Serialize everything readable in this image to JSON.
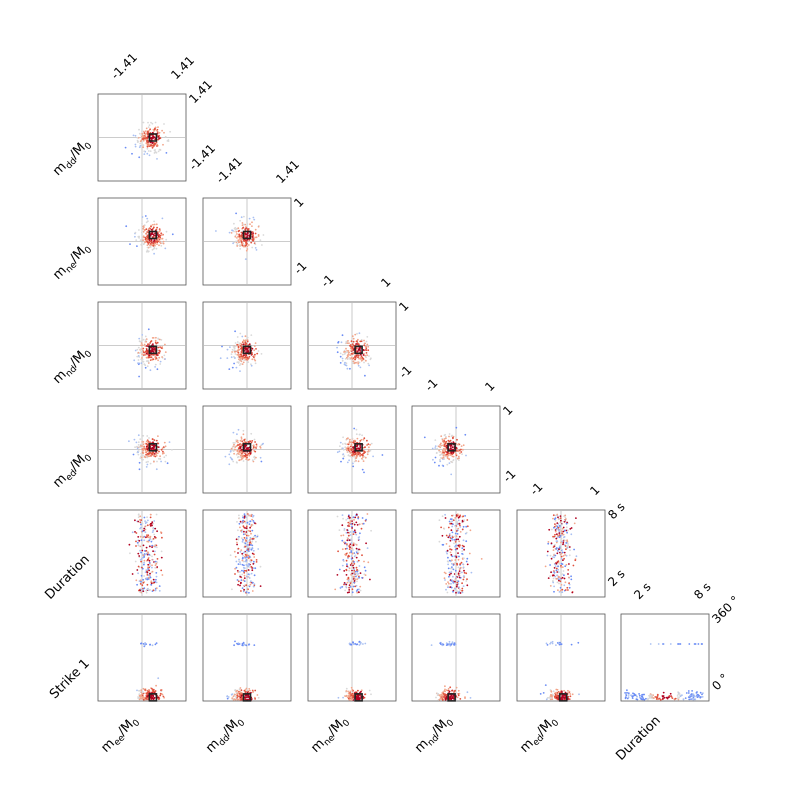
{
  "chart_data": {
    "type": "scatter",
    "title": "",
    "variables": [
      {
        "key": "m_ee",
        "label": "m",
        "sub": "ee",
        "unit": "/M",
        "unit_sub": "0",
        "range": [
          -1.41,
          1.41
        ]
      },
      {
        "key": "m_dd",
        "label": "m",
        "sub": "dd",
        "unit": "/M",
        "unit_sub": "0",
        "range": [
          -1.41,
          1.41
        ]
      },
      {
        "key": "m_ne",
        "label": "m",
        "sub": "ne",
        "unit": "/M",
        "unit_sub": "0",
        "range": [
          -1,
          1
        ]
      },
      {
        "key": "m_nd",
        "label": "m",
        "sub": "nd",
        "unit": "/M",
        "unit_sub": "0",
        "range": [
          -1,
          1
        ]
      },
      {
        "key": "m_ed",
        "label": "m",
        "sub": "ed",
        "unit": "/M",
        "unit_sub": "0",
        "range": [
          -1,
          1
        ]
      },
      {
        "key": "duration",
        "label": "Duration",
        "range": [
          2,
          8
        ],
        "unit": "s"
      },
      {
        "key": "strike1",
        "label": "Strike 1",
        "range": [
          0,
          360
        ],
        "unit": "°"
      }
    ],
    "row_labels": [
      "m_dd",
      "m_ne",
      "m_nd",
      "m_ed",
      "Duration",
      "Strike 1"
    ],
    "col_labels": [
      "m_ee",
      "m_dd",
      "m_ne",
      "m_nd",
      "m_ed",
      "Duration"
    ],
    "tick_labels": {
      "m_ee": [
        "-1.41",
        "1.41"
      ],
      "m_dd": [
        "-1.41",
        "1.41"
      ],
      "m_ne": [
        "-1",
        "1"
      ],
      "m_nd": [
        "-1",
        "1"
      ],
      "m_ed": [
        "-1",
        "1"
      ],
      "duration": [
        "2 s",
        "8 s"
      ],
      "strike1": [
        "0 °",
        "360 °"
      ]
    },
    "best_solution": {
      "m_ee": 0.35,
      "m_dd": 0.0,
      "m_ne": 0.15,
      "m_nd": -0.1,
      "m_ed": 0.05,
      "duration": 5.0,
      "strike1": 15
    },
    "colormap": [
      "#6a8cf5",
      "#a9c0f2",
      "#d9d9d9",
      "#f2a58a",
      "#e0503c",
      "#b00020"
    ],
    "marker_color": "#222222",
    "grid": false
  }
}
